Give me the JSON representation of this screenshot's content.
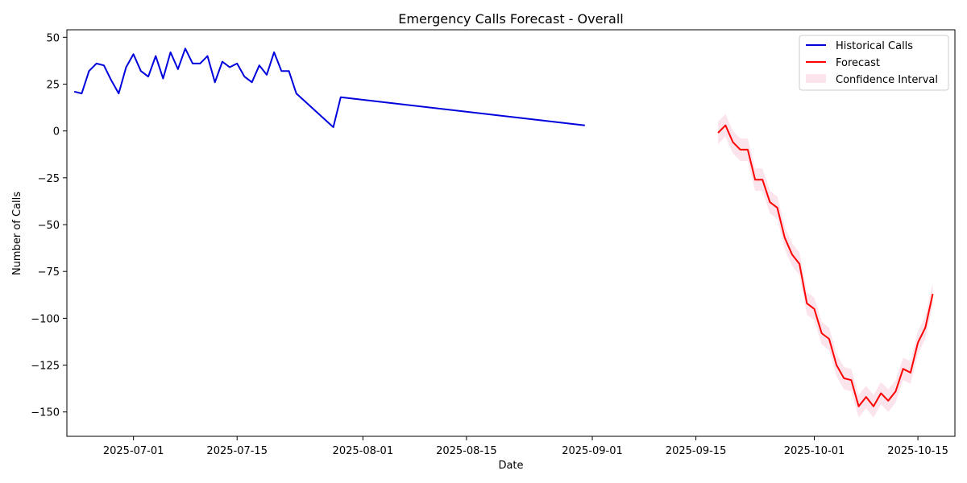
{
  "chart_data": {
    "type": "line",
    "title": "Emergency Calls Forecast - Overall",
    "xlabel": "Date",
    "ylabel": "Number of Calls",
    "xlim": [
      "2025-06-22",
      "2025-10-20"
    ],
    "ylim": [
      -163,
      54
    ],
    "x_ticks": [
      "2025-07-01",
      "2025-07-15",
      "2025-08-01",
      "2025-08-15",
      "2025-09-01",
      "2025-09-15",
      "2025-10-01",
      "2025-10-15"
    ],
    "y_ticks": [
      50,
      25,
      0,
      -25,
      -50,
      -75,
      -100,
      -125,
      -150
    ],
    "y_tick_labels": [
      "50",
      "25",
      "0",
      "−25",
      "−50",
      "−75",
      "−100",
      "−125",
      "−150"
    ],
    "grid": false,
    "legend_position": "top-right",
    "colors": {
      "historical": "#0000dd",
      "forecast": "#ff0000",
      "confidence": "#fce4ec"
    },
    "series": [
      {
        "name": "Historical Calls",
        "style": "line",
        "color": "#0000dd",
        "points": [
          [
            "2025-06-23",
            21
          ],
          [
            "2025-06-24",
            20
          ],
          [
            "2025-06-25",
            32
          ],
          [
            "2025-06-26",
            36
          ],
          [
            "2025-06-27",
            35
          ],
          [
            "2025-06-28",
            27
          ],
          [
            "2025-06-29",
            20
          ],
          [
            "2025-06-30",
            34
          ],
          [
            "2025-07-01",
            41
          ],
          [
            "2025-07-02",
            32
          ],
          [
            "2025-07-03",
            29
          ],
          [
            "2025-07-04",
            40
          ],
          [
            "2025-07-05",
            28
          ],
          [
            "2025-07-06",
            42
          ],
          [
            "2025-07-07",
            33
          ],
          [
            "2025-07-08",
            44
          ],
          [
            "2025-07-09",
            36
          ],
          [
            "2025-07-10",
            36
          ],
          [
            "2025-07-11",
            40
          ],
          [
            "2025-07-12",
            26
          ],
          [
            "2025-07-13",
            37
          ],
          [
            "2025-07-14",
            34
          ],
          [
            "2025-07-15",
            36
          ],
          [
            "2025-07-16",
            29
          ],
          [
            "2025-07-17",
            26
          ],
          [
            "2025-07-18",
            35
          ],
          [
            "2025-07-19",
            30
          ],
          [
            "2025-07-20",
            42
          ],
          [
            "2025-07-21",
            32
          ],
          [
            "2025-07-22",
            32
          ],
          [
            "2025-07-23",
            20
          ],
          [
            "2025-07-28",
            2
          ],
          [
            "2025-07-29",
            18
          ],
          [
            "2025-08-31",
            3
          ]
        ]
      },
      {
        "name": "Forecast",
        "style": "line",
        "color": "#ff0000",
        "points": [
          [
            "2025-09-18",
            -1
          ],
          [
            "2025-09-19",
            3
          ],
          [
            "2025-09-20",
            -6
          ],
          [
            "2025-09-21",
            -10
          ],
          [
            "2025-09-22",
            -10
          ],
          [
            "2025-09-23",
            -26
          ],
          [
            "2025-09-24",
            -26
          ],
          [
            "2025-09-25",
            -38
          ],
          [
            "2025-09-26",
            -41
          ],
          [
            "2025-09-27",
            -57
          ],
          [
            "2025-09-28",
            -66
          ],
          [
            "2025-09-29",
            -71
          ],
          [
            "2025-09-30",
            -92
          ],
          [
            "2025-10-01",
            -95
          ],
          [
            "2025-10-02",
            -108
          ],
          [
            "2025-10-03",
            -111
          ],
          [
            "2025-10-04",
            -125
          ],
          [
            "2025-10-05",
            -132
          ],
          [
            "2025-10-06",
            -133
          ],
          [
            "2025-10-07",
            -147
          ],
          [
            "2025-10-08",
            -142
          ],
          [
            "2025-10-09",
            -147
          ],
          [
            "2025-10-10",
            -140
          ],
          [
            "2025-10-11",
            -144
          ],
          [
            "2025-10-12",
            -139
          ],
          [
            "2025-10-13",
            -127
          ],
          [
            "2025-10-14",
            -129
          ],
          [
            "2025-10-15",
            -113
          ],
          [
            "2025-10-16",
            -105
          ],
          [
            "2025-10-17",
            -87
          ]
        ]
      },
      {
        "name": "Confidence Interval",
        "style": "band",
        "color": "#fce4ec",
        "half_width": 6
      }
    ]
  }
}
